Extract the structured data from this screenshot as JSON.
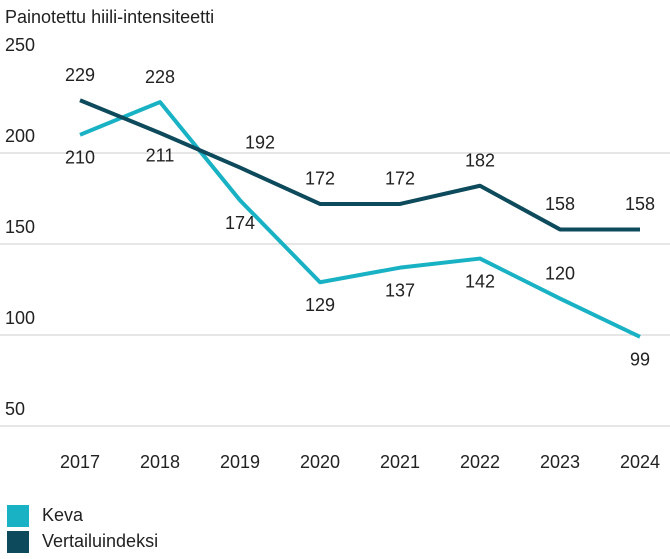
{
  "chart_data": {
    "type": "line",
    "title": "Painotettu hiili-intensiteetti",
    "categories": [
      "2017",
      "2018",
      "2019",
      "2020",
      "2021",
      "2022",
      "2023",
      "2024"
    ],
    "series": [
      {
        "name": "Keva",
        "color": "#19b2c4",
        "values": [
          210,
          228,
          174,
          129,
          137,
          142,
          120,
          99
        ]
      },
      {
        "name": "Vertailuindeksi",
        "color": "#0d4a5c",
        "values": [
          229,
          211,
          192,
          172,
          172,
          182,
          158,
          158
        ]
      }
    ],
    "ylim": [
      50,
      250
    ],
    "yticks": [
      50,
      100,
      150,
      200,
      250
    ],
    "grid": true
  }
}
